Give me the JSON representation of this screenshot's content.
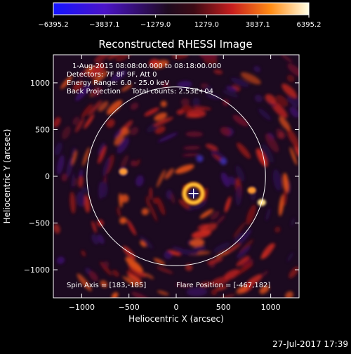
{
  "chart_data": {
    "type": "heatmap",
    "title": "Reconstructed RHESSI Image",
    "xlabel": "Heliocentric X (arcsec)",
    "ylabel": "Heliocentric Y (arcsec)",
    "xlim": [
      -1300,
      1300
    ],
    "ylim": [
      -1300,
      1300
    ],
    "x_ticks": [
      -1000,
      -500,
      0,
      500,
      1000
    ],
    "y_ticks": [
      -1000,
      -500,
      0,
      500,
      1000
    ],
    "x_tick_labels": [
      "−1000",
      "−500",
      "0",
      "500",
      "1000"
    ],
    "y_tick_labels": [
      "−1000",
      "−500",
      "0",
      "500",
      "1000"
    ],
    "colorbar": {
      "min": -6395.2,
      "max": 6395.2,
      "ticks": [
        -6395.2,
        -3837.1,
        -1279.0,
        1279.0,
        3837.1,
        6395.2
      ],
      "tick_labels": [
        "−6395.2",
        "−3837.1",
        "−1279.0",
        "1279.0",
        "3837.1",
        "6395.2"
      ],
      "colors": [
        "#1414ff",
        "#4b14c8",
        "#1e0a1e",
        "#c81e1e",
        "#ff8c14",
        "#ffffe6"
      ]
    },
    "info_lines": [
      "1-Aug-2015 08:08:00.000 to 08:18:00.000",
      "Detectors: 7F 8F 9F, Att 0",
      "Energy Range: 6.0 - 25.0 keV",
      "Back Projection     Total counts: 2.53E+04"
    ],
    "spin_axis_text": "Spin Axis = [183,-185]",
    "flare_position_text": "Flare Position = [-467,182]",
    "solar_limb_radius_arcsec": 945,
    "marker_position": [
      183,
      -185
    ],
    "hotspots": [
      {
        "x": 183,
        "y": -185,
        "value": 6000
      },
      {
        "x": 905,
        "y": -280,
        "value": 5200
      },
      {
        "x": -560,
        "y": 50,
        "value": 3500
      },
      {
        "x": 800,
        "y": -150,
        "value": 3000
      }
    ],
    "grid": false
  },
  "footer": {
    "timestamp": "27-Jul-2017 17:39"
  },
  "colors": {
    "background": "#000000",
    "axes": "#ffffff",
    "limb_circle": "#ffffff"
  }
}
